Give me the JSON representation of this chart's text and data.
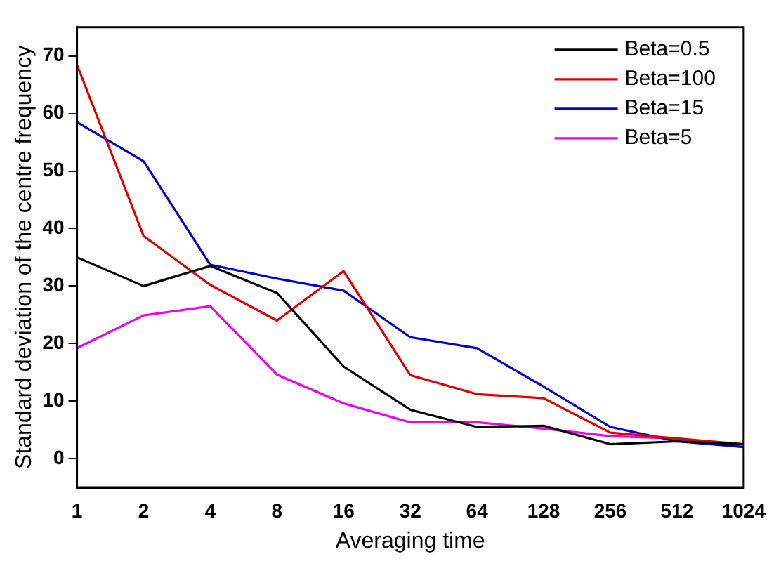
{
  "chart_data": {
    "type": "line",
    "xlabel": "Averaging time",
    "ylabel": "Standard deviation of the centre frequency",
    "categories": [
      "1",
      "2",
      "4",
      "8",
      "16",
      "32",
      "64",
      "128",
      "256",
      "512",
      "1024"
    ],
    "series": [
      {
        "name": "Beta=0.5",
        "color": "#000000",
        "values": [
          35,
          30,
          33.5,
          28.8,
          16,
          8.5,
          5.5,
          5.7,
          2.5,
          3,
          2.5
        ]
      },
      {
        "name": "Beta=100",
        "color": "#e00000",
        "values": [
          68.5,
          38.7,
          30.2,
          24,
          32.6,
          14.5,
          11.2,
          10.5,
          4.5,
          3.5,
          2.5
        ]
      },
      {
        "name": "Beta=15",
        "color": "#0000cc",
        "values": [
          58.5,
          51.7,
          33.7,
          31.3,
          29.2,
          21.1,
          19.2,
          12.5,
          5.5,
          3,
          2
        ]
      },
      {
        "name": "Beta=5",
        "color": "#ee00ee",
        "values": [
          19.2,
          24.9,
          26.5,
          14.6,
          9.6,
          6.3,
          6.3,
          5.2,
          3.9,
          3.5,
          2
        ]
      }
    ],
    "ylim": [
      -5,
      75
    ],
    "yticks": [
      0,
      10,
      20,
      30,
      40,
      50,
      60,
      70
    ],
    "grid": false,
    "legend": "top right",
    "marker": "none",
    "line_style": "solid"
  }
}
